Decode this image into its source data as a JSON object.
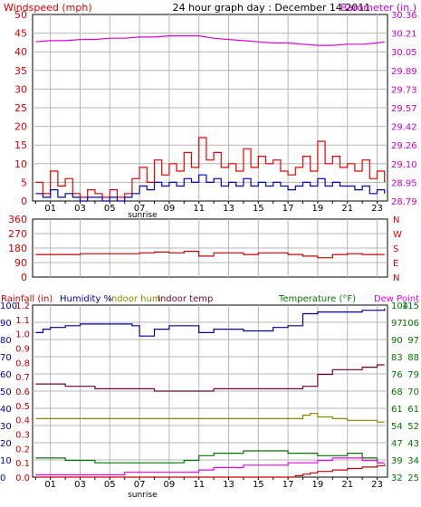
{
  "header": {
    "title": "24 hour graph day : December 14 2011",
    "left_label": "Windspeed (mph)",
    "right_label": "Barometer (in.)"
  },
  "colors": {
    "wind_axis": "#dd0000",
    "baro_axis": "#cc00cc",
    "gust": "#ee0000",
    "avg_wind": "#0000cc",
    "barometer": "#dd00dd",
    "direction": "#cc0000",
    "humidity": "#0000aa",
    "indoor_hum": "#888800",
    "indoor_temp": "#770033",
    "temperature": "#007700",
    "dew_point": "#ee00ee",
    "rain": "#cc0000",
    "grid": "#b4b4b4",
    "text": "#000000"
  },
  "x_axis": {
    "hour_ticks": [
      "01",
      "03",
      "05",
      "07",
      "09",
      "11",
      "13",
      "15",
      "17",
      "19",
      "21",
      "23"
    ],
    "hour_values": [
      1,
      3,
      5,
      7,
      9,
      11,
      13,
      15,
      17,
      19,
      21,
      23
    ],
    "sunrise_label": "sunrise",
    "sunrise_hour": 7.2,
    "range": [
      -0.2,
      23.7
    ]
  },
  "wind_direction": {
    "left_ticks": [
      "360",
      "270",
      "180",
      "90",
      "0"
    ],
    "right_ticks": [
      "N",
      "W",
      "S",
      "E",
      "N"
    ],
    "ylim": [
      0,
      360
    ]
  },
  "bottom_header": {
    "rainfall": "Rainfall (in)",
    "humidity": "Humidity %",
    "indoor_hum": "Indoor hum",
    "indoor_temp": "Indoor temp",
    "temperature": "Temperature (°F)",
    "dew_point": "Dew Point"
  },
  "bottom_axes": {
    "humidity_ticks": [
      "100",
      "90",
      "80",
      "70",
      "60",
      "50",
      "40",
      "30",
      "20",
      "10",
      "0"
    ],
    "rain_ticks": [
      "1.2",
      "1.1",
      "1.0",
      "0.9",
      "0.8",
      "0.7",
      "0.6",
      "0.5",
      "0.4",
      "0.3",
      "0.2",
      "0.1",
      "0.0"
    ],
    "temp_f_ticks": [
      "104",
      "97",
      "90",
      "83",
      "76",
      "68",
      "61",
      "54",
      "47",
      "39",
      "32"
    ],
    "temp_f2_ticks": [
      "115",
      "106",
      "97",
      "88",
      "79",
      "70",
      "61",
      "52",
      "43",
      "34",
      "25"
    ]
  },
  "chart_data": [
    {
      "type": "line",
      "title": "24 hour graph day : December 14 2011",
      "ylabel": "Windspeed (mph)",
      "y2label": "Barometer (in.)",
      "ylim": [
        0,
        50
      ],
      "y2lim": [
        28.79,
        30.36
      ],
      "yticks": [
        "0",
        "5",
        "10",
        "15",
        "20",
        "25",
        "30",
        "35",
        "40",
        "45",
        "50"
      ],
      "y2ticks": [
        "28.79",
        "28.95",
        "29.10",
        "29.26",
        "29.42",
        "29.57",
        "29.73",
        "29.89",
        "30.05",
        "30.21",
        "30.36"
      ],
      "series": [
        {
          "name": "Barometer (in.)",
          "axis": "right",
          "x": [
            0,
            1,
            2,
            3,
            4,
            5,
            6,
            7,
            8,
            9,
            10,
            11,
            12,
            13,
            14,
            15,
            16,
            17,
            18,
            19,
            20,
            21,
            22,
            23,
            23.5
          ],
          "values": [
            30.13,
            30.14,
            30.14,
            30.15,
            30.15,
            30.16,
            30.16,
            30.17,
            30.17,
            30.18,
            30.18,
            30.18,
            30.16,
            30.15,
            30.14,
            30.13,
            30.12,
            30.12,
            30.11,
            30.1,
            30.1,
            30.11,
            30.11,
            30.12,
            30.13
          ]
        },
        {
          "name": "Gust",
          "axis": "left",
          "x": [
            0,
            0.5,
            1,
            1.5,
            2,
            2.5,
            3,
            3.5,
            4,
            4.5,
            5,
            5.5,
            6,
            6.5,
            7,
            7.5,
            8,
            8.5,
            9,
            9.5,
            10,
            10.5,
            11,
            11.5,
            12,
            12.5,
            13,
            13.5,
            14,
            14.5,
            15,
            15.5,
            16,
            16.5,
            17,
            17.5,
            18,
            18.5,
            19,
            19.5,
            20,
            20.5,
            21,
            21.5,
            22,
            22.5,
            23,
            23.5
          ],
          "values": [
            5,
            2,
            8,
            4,
            6,
            2,
            1,
            3,
            2,
            1,
            3,
            1,
            2,
            6,
            9,
            5,
            11,
            7,
            10,
            8,
            13,
            9,
            17,
            11,
            13,
            9,
            10,
            8,
            14,
            9,
            12,
            10,
            11,
            8,
            7,
            9,
            12,
            8,
            16,
            10,
            12,
            9,
            10,
            8,
            11,
            6,
            8,
            5
          ]
        },
        {
          "name": "Average wind",
          "axis": "left",
          "x": [
            0,
            0.5,
            1,
            1.5,
            2,
            2.5,
            3,
            3.5,
            4,
            4.5,
            5,
            5.5,
            6,
            6.5,
            7,
            7.5,
            8,
            8.5,
            9,
            9.5,
            10,
            10.5,
            11,
            11.5,
            12,
            12.5,
            13,
            13.5,
            14,
            14.5,
            15,
            15.5,
            16,
            16.5,
            17,
            17.5,
            18,
            18.5,
            19,
            19.5,
            20,
            20.5,
            21,
            21.5,
            22,
            22.5,
            23,
            23.5
          ],
          "values": [
            2,
            1,
            3,
            1,
            2,
            1,
            0,
            1,
            1,
            0,
            1,
            0,
            1,
            2,
            4,
            3,
            5,
            4,
            5,
            4,
            6,
            5,
            7,
            5,
            6,
            4,
            5,
            4,
            6,
            4,
            5,
            4,
            5,
            4,
            3,
            4,
            5,
            4,
            6,
            4,
            5,
            4,
            4,
            3,
            4,
            2,
            3,
            2
          ]
        }
      ]
    },
    {
      "type": "line",
      "ylabel": "Wind direction",
      "ylim": [
        0,
        360
      ],
      "series": [
        {
          "name": "Wind direction",
          "x": [
            0,
            1,
            2,
            3,
            4,
            5,
            6,
            7,
            8,
            9,
            10,
            11,
            12,
            13,
            14,
            15,
            16,
            17,
            18,
            19,
            20,
            21,
            22,
            23,
            23.5
          ],
          "values": [
            140,
            140,
            140,
            145,
            145,
            145,
            145,
            150,
            155,
            150,
            160,
            130,
            150,
            150,
            140,
            150,
            150,
            140,
            130,
            120,
            140,
            145,
            140,
            140,
            140
          ]
        }
      ]
    },
    {
      "type": "line",
      "ylabel": "Humidity %",
      "ylim": [
        0,
        100
      ],
      "y2label": "Temperature (°F)",
      "y2lim": [
        32,
        104
      ],
      "series": [
        {
          "name": "Humidity %",
          "axis": "humidity",
          "x": [
            0,
            0.5,
            1,
            1.5,
            2,
            3,
            4,
            5,
            6,
            6.5,
            7,
            7.5,
            8,
            9,
            10,
            11,
            12,
            13,
            14,
            15,
            16,
            17,
            18,
            19,
            20,
            21,
            22,
            23,
            23.5
          ],
          "values": [
            84,
            86,
            87,
            87,
            88,
            89,
            89,
            89,
            89,
            88,
            82,
            82,
            86,
            88,
            88,
            84,
            86,
            86,
            85,
            85,
            87,
            88,
            95,
            96,
            96,
            96,
            97,
            97,
            98
          ]
        },
        {
          "name": "Indoor hum",
          "axis": "humidity",
          "x": [
            0,
            4,
            8,
            12,
            16,
            17.5,
            18,
            18.5,
            19,
            20,
            21,
            22,
            23,
            23.5
          ],
          "values": [
            34,
            34,
            34,
            34,
            34,
            34,
            36,
            37,
            35,
            34,
            33,
            33,
            32,
            32
          ]
        },
        {
          "name": "Indoor temp",
          "axis": "temp",
          "x": [
            0,
            2,
            4,
            6,
            8,
            10,
            12,
            14,
            16,
            17,
            18,
            19,
            20,
            21,
            22,
            23,
            23.5
          ],
          "values": [
            71,
            70,
            69,
            69,
            68,
            68,
            69,
            69,
            69,
            69,
            70,
            75,
            77,
            77,
            78,
            79,
            79
          ]
        },
        {
          "name": "Temperature (°F)",
          "axis": "temp",
          "x": [
            0,
            2,
            4,
            6,
            8,
            10,
            11,
            12,
            13,
            14,
            15,
            16,
            17,
            18,
            19,
            20,
            21,
            22,
            23,
            23.5
          ],
          "values": [
            40,
            39,
            38,
            38,
            38,
            39,
            41,
            42,
            42,
            43,
            43,
            43,
            42,
            42,
            41,
            41,
            42,
            40,
            38,
            38
          ]
        },
        {
          "name": "Dew Point",
          "axis": "temp",
          "x": [
            0,
            2,
            4,
            6,
            8,
            10,
            11,
            12,
            13,
            14,
            15,
            16,
            17,
            18,
            19,
            20,
            21,
            22,
            23,
            23.5
          ],
          "values": [
            33,
            33,
            33,
            34,
            34,
            34,
            35,
            36,
            36,
            37,
            37,
            37,
            38,
            38,
            39,
            40,
            40,
            39,
            38,
            38
          ]
        },
        {
          "name": "Rainfall (in)",
          "axis": "rain",
          "x": [
            0,
            17,
            17.5,
            18,
            18.5,
            19,
            20,
            21,
            22,
            23,
            23.5
          ],
          "values": [
            0,
            0,
            0.01,
            0.02,
            0.03,
            0.04,
            0.05,
            0.06,
            0.07,
            0.08,
            0.09
          ]
        }
      ]
    }
  ]
}
